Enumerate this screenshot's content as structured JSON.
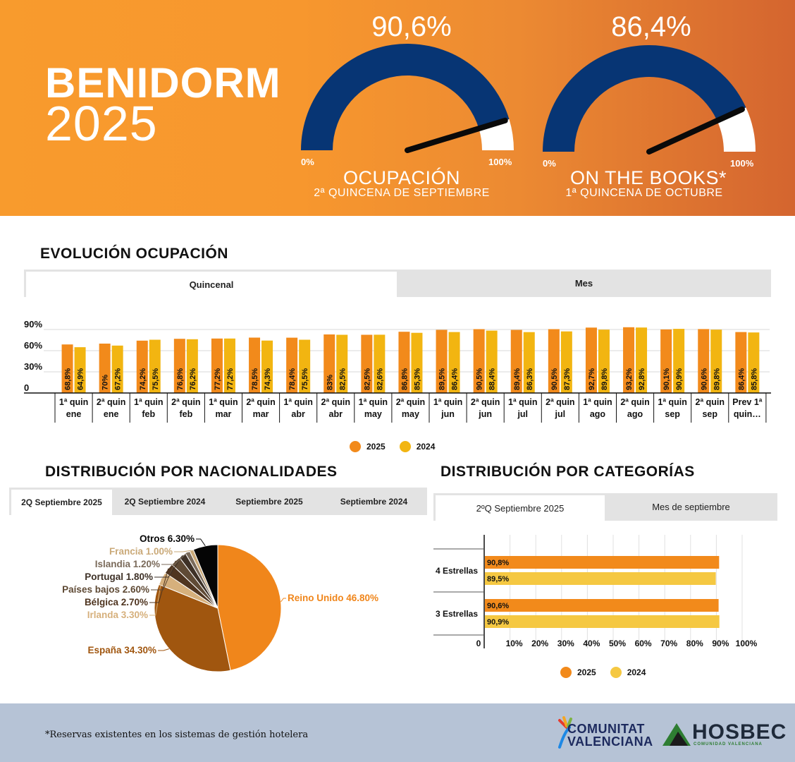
{
  "header": {
    "title": "BENIDORM",
    "year": "2025",
    "gauges": [
      {
        "value": 90.6,
        "value_label": "90,6%",
        "min_label": "0%",
        "max_label": "100%",
        "title": "OCUPACIÓN",
        "subtitle": "2ª QUINCENA DE SEPTIEMBRE"
      },
      {
        "value": 86.4,
        "value_label": "86,4%",
        "min_label": "0%",
        "max_label": "100%",
        "title": "ON THE BOOKS*",
        "subtitle": "1ª QUINCENA DE OCTUBRE"
      }
    ]
  },
  "colors": {
    "orange_2025": "#f28a1b",
    "yellow_2024": "#f2b511",
    "gauge_fill": "#073574",
    "cat_2024": "#f5c842"
  },
  "evolucion": {
    "title": "EVOLUCIÓN OCUPACIÓN",
    "tabs": [
      {
        "label": "Quincenal",
        "active": true
      },
      {
        "label": "Mes",
        "active": false
      }
    ],
    "legend": [
      "2025",
      "2024"
    ]
  },
  "nacionalidades": {
    "title": "DISTRIBUCIÓN POR NACIONALIDADES",
    "tabs": [
      {
        "label": "2Q Septiembre 2025",
        "active": true
      },
      {
        "label": "2Q Septiembre 2024",
        "active": false
      },
      {
        "label": "Septiembre 2025",
        "active": false
      },
      {
        "label": "Septiembre 2024",
        "active": false
      }
    ]
  },
  "categorias": {
    "title": "DISTRIBUCIÓN POR CATEGORÍAS",
    "tabs": [
      {
        "label": "2ºQ Septiembre 2025",
        "active": true
      },
      {
        "label": "Mes de septiembre",
        "active": false
      }
    ],
    "legend": [
      "2025",
      "2024"
    ]
  },
  "footer": {
    "note": "*Reservas existentes en los sistemas de gestión hotelera",
    "logo_cv_line1": "COMUNITAT",
    "logo_cv_line2": "VALENCIANA",
    "logo_hosbec": "HOSBEC",
    "logo_hosbec_sub": "COMUNIDAD VALENCIANA"
  },
  "chart_data": [
    {
      "type": "bar",
      "ylim": [
        0,
        100
      ],
      "yticks": [
        "0",
        "30%",
        "60%",
        "90%"
      ],
      "ytick_values": [
        0,
        30,
        60,
        90
      ],
      "categories": [
        [
          "1ª quin",
          "ene"
        ],
        [
          "2ª quin",
          "ene"
        ],
        [
          "1ª quin",
          "feb"
        ],
        [
          "2ª quin",
          "feb"
        ],
        [
          "1ª quin",
          "mar"
        ],
        [
          "2ª quin",
          "mar"
        ],
        [
          "1ª quin",
          "abr"
        ],
        [
          "2ª quin",
          "abr"
        ],
        [
          "1ª quin",
          "may"
        ],
        [
          "2ª quin",
          "may"
        ],
        [
          "1ª quin",
          "jun"
        ],
        [
          "2ª quin",
          "jun"
        ],
        [
          "1ª quin",
          "jul"
        ],
        [
          "2ª quin",
          "jul"
        ],
        [
          "1ª quin",
          "ago"
        ],
        [
          "2ª quin",
          "ago"
        ],
        [
          "1ª quin",
          "sep"
        ],
        [
          "2ª quin",
          "sep"
        ],
        [
          "Prev 1ª",
          "quin…"
        ]
      ],
      "series": [
        {
          "name": "2025",
          "values": [
            68.8,
            70,
            74.2,
            76.8,
            77.2,
            78.5,
            78.4,
            83,
            82.5,
            86.8,
            89.5,
            90.5,
            89.4,
            90.5,
            92.7,
            93.2,
            90.1,
            90.6,
            86.4
          ],
          "labels": [
            "68,8%",
            "70%",
            "74,2%",
            "76,8%",
            "77,2%",
            "78,5%",
            "78,4%",
            "83%",
            "82,5%",
            "86,8%",
            "89,5%",
            "90,5%",
            "89,4%",
            "90,5%",
            "92,7%",
            "93,2%",
            "90,1%",
            "90,6%",
            "86,4%"
          ]
        },
        {
          "name": "2024",
          "values": [
            64.9,
            67.2,
            75.5,
            76.2,
            77.2,
            74.3,
            75.5,
            82.5,
            82.6,
            85.3,
            86.4,
            88.4,
            86.3,
            87.3,
            89.8,
            92.8,
            90.9,
            89.8,
            85.8
          ],
          "labels": [
            "64,9%",
            "67,2%",
            "75,5%",
            "76,2%",
            "77,2%",
            "74,3%",
            "75,5%",
            "82,5%",
            "82,6%",
            "85,3%",
            "86,4%",
            "88,4%",
            "86,3%",
            "87,3%",
            "89,8%",
            "92,8%",
            "90,9%",
            "89,8%",
            "85,8%"
          ]
        }
      ]
    },
    {
      "type": "pie",
      "slices": [
        {
          "label": "Reino Unido 46.80%",
          "value": 46.8,
          "color": "#f0861b"
        },
        {
          "label": "España 34.30%",
          "value": 34.3,
          "color": "#a0560f"
        },
        {
          "label": "Irlanda 3.30%",
          "value": 3.3,
          "color": "#d6b07c"
        },
        {
          "label": "Bélgica 2.70%",
          "value": 2.7,
          "color": "#4f3520"
        },
        {
          "label": "Países bajos 2.60%",
          "value": 2.6,
          "color": "#5f4a35"
        },
        {
          "label": "Portugal 1.80%",
          "value": 1.8,
          "color": "#3e3127"
        },
        {
          "label": "Islandia 1.20%",
          "value": 1.2,
          "color": "#7a6a5a"
        },
        {
          "label": "Francia 1.00%",
          "value": 1.0,
          "color": "#caa978"
        },
        {
          "label": "Otros 6.30%",
          "value": 6.3,
          "color": "#050505"
        }
      ]
    },
    {
      "type": "bar",
      "orientation": "horizontal",
      "xlim": [
        0,
        100
      ],
      "xticks": [
        "0",
        "10%",
        "20%",
        "30%",
        "40%",
        "50%",
        "60%",
        "70%",
        "80%",
        "90%",
        "100%"
      ],
      "categories": [
        "4 Estrellas",
        "3 Estrellas"
      ],
      "series": [
        {
          "name": "2025",
          "values": [
            90.8,
            90.6
          ],
          "labels": [
            "90,8%",
            "90,6%"
          ]
        },
        {
          "name": "2024",
          "values": [
            89.5,
            90.9
          ],
          "labels": [
            "89,5%",
            "90,9%"
          ]
        }
      ]
    }
  ]
}
